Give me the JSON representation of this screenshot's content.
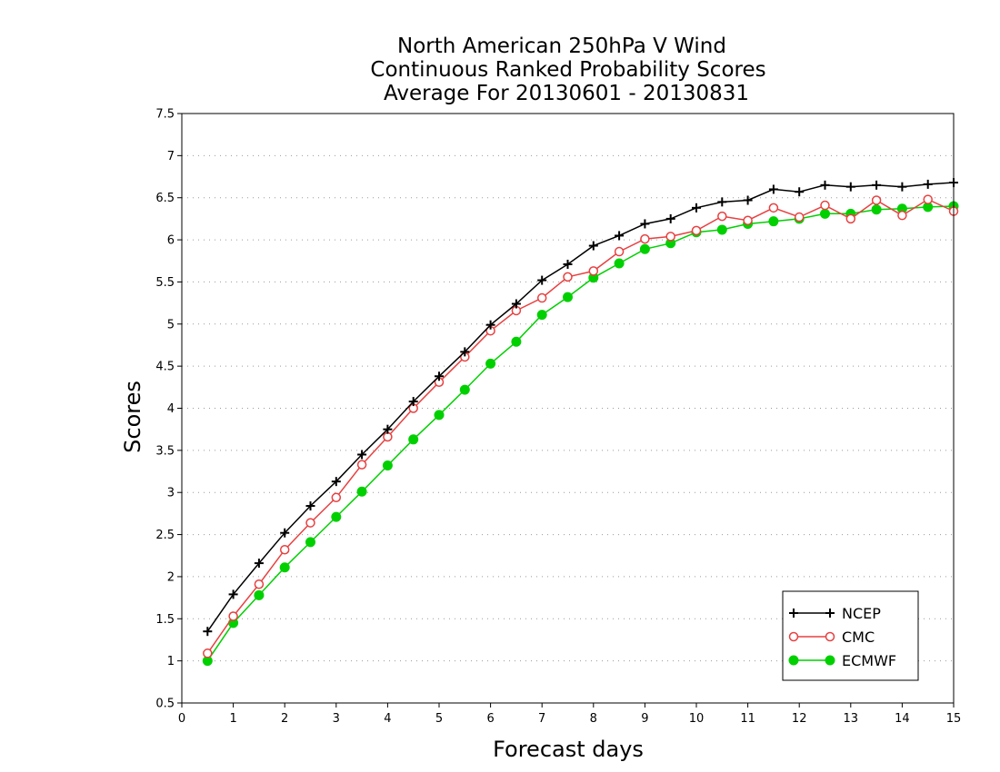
{
  "chart_data": {
    "type": "line",
    "title_lines": [
      "North American 250hPa V Wind",
      "Continuous Ranked Probability Scores",
      "Average For 20130601 - 20130831"
    ],
    "xlabel": "Forecast days",
    "ylabel": "Scores",
    "xlim": [
      0,
      15
    ],
    "ylim": [
      0.5,
      7.5
    ],
    "xticks": [
      "0",
      "1",
      "2",
      "3",
      "4",
      "5",
      "6",
      "7",
      "8",
      "9",
      "10",
      "11",
      "12",
      "13",
      "14",
      "15"
    ],
    "yticks": [
      "0.5",
      "1",
      "1.5",
      "2",
      "2.5",
      "3",
      "3.5",
      "4",
      "4.5",
      "5",
      "5.5",
      "6",
      "6.5",
      "7",
      "7.5"
    ],
    "grid": true,
    "legend_position": "bottom-right",
    "x": [
      0.5,
      1,
      1.5,
      2,
      2.5,
      3,
      3.5,
      4,
      4.5,
      5,
      5.5,
      6,
      6.5,
      7,
      7.5,
      8,
      8.5,
      9,
      9.5,
      10,
      10.5,
      11,
      11.5,
      12,
      12.5,
      13,
      13.5,
      14,
      14.5,
      15
    ],
    "series": [
      {
        "name": "NCEP",
        "color": "#000000",
        "marker": "plus",
        "values": [
          1.35,
          1.79,
          2.16,
          2.52,
          2.84,
          3.13,
          3.45,
          3.75,
          4.08,
          4.38,
          4.67,
          4.99,
          5.24,
          5.52,
          5.71,
          5.93,
          6.05,
          6.19,
          6.25,
          6.38,
          6.45,
          6.47,
          6.6,
          6.57,
          6.65,
          6.63,
          6.65,
          6.63,
          6.66,
          6.68
        ]
      },
      {
        "name": "CMC",
        "color": "#e84040",
        "marker": "open-circle",
        "values": [
          1.09,
          1.53,
          1.91,
          2.32,
          2.64,
          2.94,
          3.33,
          3.66,
          4.0,
          4.31,
          4.61,
          4.92,
          5.16,
          5.31,
          5.56,
          5.63,
          5.86,
          6.01,
          6.04,
          6.11,
          6.28,
          6.23,
          6.38,
          6.27,
          6.41,
          6.25,
          6.47,
          6.29,
          6.48,
          6.34
        ]
      },
      {
        "name": "ECMWF",
        "color": "#00d000",
        "marker": "filled-circle",
        "values": [
          1.0,
          1.45,
          1.78,
          2.11,
          2.41,
          2.71,
          3.01,
          3.32,
          3.63,
          3.92,
          4.22,
          4.53,
          4.79,
          5.11,
          5.32,
          5.55,
          5.72,
          5.89,
          5.96,
          6.09,
          6.12,
          6.19,
          6.22,
          6.25,
          6.31,
          6.31,
          6.36,
          6.37,
          6.39,
          6.4
        ]
      }
    ]
  }
}
